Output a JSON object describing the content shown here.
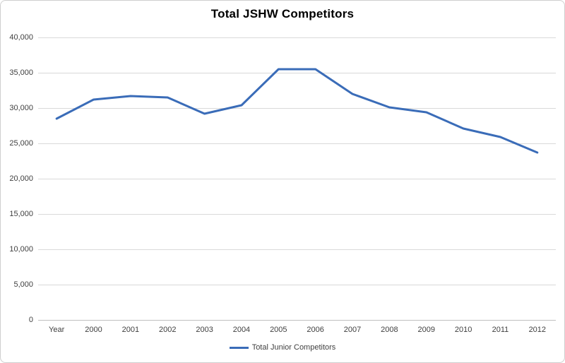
{
  "chart_data": {
    "type": "line",
    "title": "Total JSHW Competitors",
    "xlabel": "",
    "ylabel": "",
    "categories": [
      "Year",
      "2000",
      "2001",
      "2002",
      "2003",
      "2004",
      "2005",
      "2006",
      "2007",
      "2008",
      "2009",
      "2010",
      "2011",
      "2012"
    ],
    "series": [
      {
        "name": "Total Junior Competitors",
        "color": "#3a6cb8",
        "values": [
          28500,
          31200,
          31700,
          31500,
          29200,
          30400,
          35500,
          35500,
          32000,
          30100,
          29400,
          27100,
          25900,
          23700
        ]
      }
    ],
    "ylim": [
      0,
      40000
    ],
    "yticks": [
      {
        "value": 0,
        "label": "0"
      },
      {
        "value": 5000,
        "label": "5,000"
      },
      {
        "value": 10000,
        "label": "10,000"
      },
      {
        "value": 15000,
        "label": "15,000"
      },
      {
        "value": 20000,
        "label": "20,000"
      },
      {
        "value": 25000,
        "label": "25,000"
      },
      {
        "value": 30000,
        "label": "30,000"
      },
      {
        "value": 35000,
        "label": "35,000"
      },
      {
        "value": 40000,
        "label": "40,000"
      }
    ],
    "grid": true,
    "legend_position": "bottom",
    "colors": {
      "series": "#3a6cb8",
      "gridline": "#d9d9d9",
      "axis_line": "#bfbfbf",
      "frame_border": "#cfcfcf",
      "tick_text": "#3f3f3f",
      "title_text": "#000000"
    }
  }
}
